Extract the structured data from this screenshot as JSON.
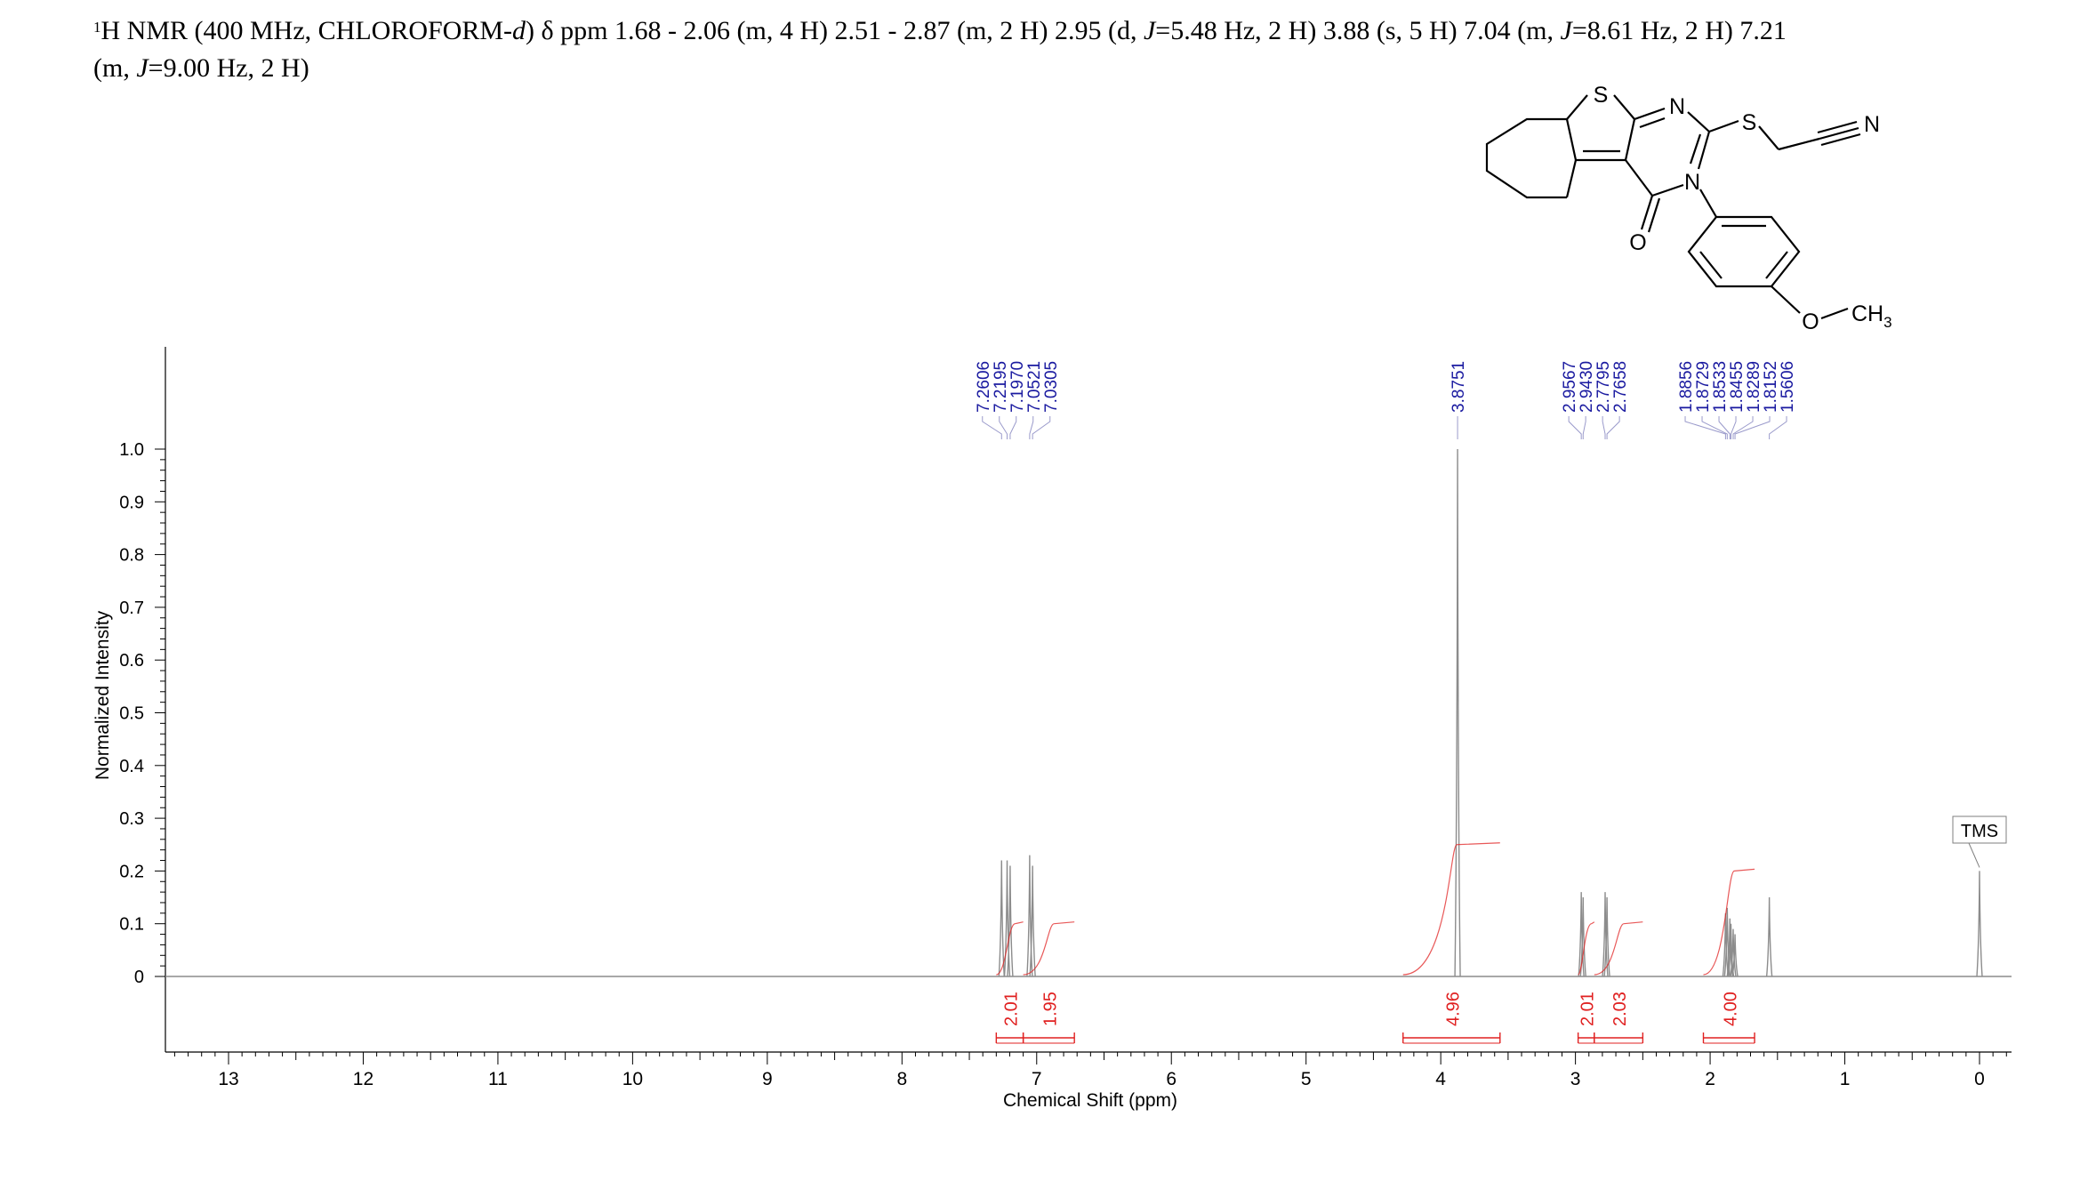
{
  "header": {
    "nucleus_mass": "1",
    "nucleus_symbol": "H NMR (400 MHz, CHLOROFORM-",
    "solvent_suffix": "d",
    "after_solvent": ") ",
    "delta": "δ",
    "unit_and_peaks_1": " ppm 1.68 - 2.06 (m, 4 H) 2.51 - 2.87 (m, 2 H) 2.95 (d, ",
    "j1_label": "J",
    "j1_value": "=5.48 Hz, 2 H) 3.88 (s, 5 H) 7.04 (m, ",
    "j2_label": "J",
    "j2_value": "=8.61 Hz, 2 H) 7.21",
    "line2_prefix": "(m, ",
    "j3_label": "J",
    "j3_value": "=9.00 Hz, 2 H)"
  },
  "structure": {
    "atom_S_ring": "S",
    "atom_N1": "N",
    "atom_S_thio": "S",
    "atom_N_nitrile": "N",
    "atom_N3": "N",
    "atom_O_carbonyl": "O",
    "atom_O_methoxy": "O",
    "methyl_label": "CH",
    "methyl_sub": "3"
  },
  "colors": {
    "trace": "#8c8c8c",
    "integral": "#e02020",
    "peak_label": "#1a1aa0",
    "axis": "#000000",
    "tms_box": "#7f7f7f"
  },
  "chart_data": {
    "type": "line",
    "title": "",
    "xlabel": "Chemical Shift (ppm)",
    "ylabel": "Normalized Intensity",
    "xlim": [
      13.5,
      -0.2
    ],
    "x_reversed": true,
    "ylim": [
      -0.13,
      1.19
    ],
    "x_ticks": [
      13,
      12,
      11,
      10,
      9,
      8,
      7,
      6,
      5,
      4,
      3,
      2,
      1,
      0
    ],
    "y_ticks": [
      0,
      0.1,
      0.2,
      0.3,
      0.4,
      0.5,
      0.6,
      0.7,
      0.8,
      0.9,
      1.0
    ],
    "y_tick_labels": [
      "0",
      "0.1",
      "0.2",
      "0.3",
      "0.4",
      "0.5",
      "0.6",
      "0.7",
      "0.8",
      "0.9",
      "1.0"
    ],
    "peaks": [
      {
        "ppm": 7.2606,
        "height": 0.22
      },
      {
        "ppm": 7.2195,
        "height": 0.22
      },
      {
        "ppm": 7.197,
        "height": 0.21
      },
      {
        "ppm": 7.0521,
        "height": 0.23
      },
      {
        "ppm": 7.0305,
        "height": 0.21
      },
      {
        "ppm": 3.8751,
        "height": 1.0
      },
      {
        "ppm": 2.9567,
        "height": 0.16
      },
      {
        "ppm": 2.943,
        "height": 0.15
      },
      {
        "ppm": 2.7795,
        "height": 0.16
      },
      {
        "ppm": 2.7658,
        "height": 0.15
      },
      {
        "ppm": 1.8856,
        "height": 0.12
      },
      {
        "ppm": 1.8729,
        "height": 0.13
      },
      {
        "ppm": 1.8533,
        "height": 0.11
      },
      {
        "ppm": 1.8455,
        "height": 0.1
      },
      {
        "ppm": 1.8289,
        "height": 0.09
      },
      {
        "ppm": 1.8152,
        "height": 0.08
      },
      {
        "ppm": 1.5606,
        "height": 0.15
      },
      {
        "ppm": 0.0,
        "height": 0.2
      }
    ],
    "peak_labels": [
      "7.2606",
      "7.2195",
      "7.1970",
      "7.0521",
      "7.0305",
      "3.8751",
      "2.9567",
      "2.9430",
      "2.7795",
      "2.7658",
      "1.8856",
      "1.8729",
      "1.8533",
      "1.8455",
      "1.8152",
      "1.8289",
      "1.5606"
    ],
    "peak_label_groups": [
      {
        "labels": [
          "7.2606",
          "7.2195",
          "7.1970",
          "7.0521",
          "7.0305"
        ],
        "ppm": [
          7.2606,
          7.2195,
          7.197,
          7.0521,
          7.0305
        ]
      },
      {
        "labels": [
          "3.8751"
        ],
        "ppm": [
          3.8751
        ]
      },
      {
        "labels": [
          "2.9567",
          "2.9430",
          "2.7795",
          "2.7658"
        ],
        "ppm": [
          2.9567,
          2.943,
          2.7795,
          2.7658
        ]
      },
      {
        "labels": [
          "1.8856",
          "1.8729",
          "1.8533",
          "1.8455",
          "1.8289",
          "1.8152",
          "1.5606"
        ],
        "ppm": [
          1.8856,
          1.8729,
          1.8533,
          1.8455,
          1.8289,
          1.8152,
          1.5606
        ]
      }
    ],
    "integrals": [
      {
        "from": 7.3,
        "to": 7.1,
        "value": "2.01",
        "curve_height": 0.1
      },
      {
        "from": 7.1,
        "to": 6.72,
        "value": "1.95",
        "curve_height": 0.1
      },
      {
        "from": 4.28,
        "to": 3.56,
        "value": "4.96",
        "curve_height": 0.25
      },
      {
        "from": 2.98,
        "to": 2.86,
        "value": "2.01",
        "curve_height": 0.1
      },
      {
        "from": 2.86,
        "to": 2.5,
        "value": "2.03",
        "curve_height": 0.1
      },
      {
        "from": 2.05,
        "to": 1.67,
        "value": "4.00",
        "curve_height": 0.2
      }
    ],
    "annotations": [
      {
        "text": "TMS",
        "ppm": 0.0
      }
    ]
  }
}
